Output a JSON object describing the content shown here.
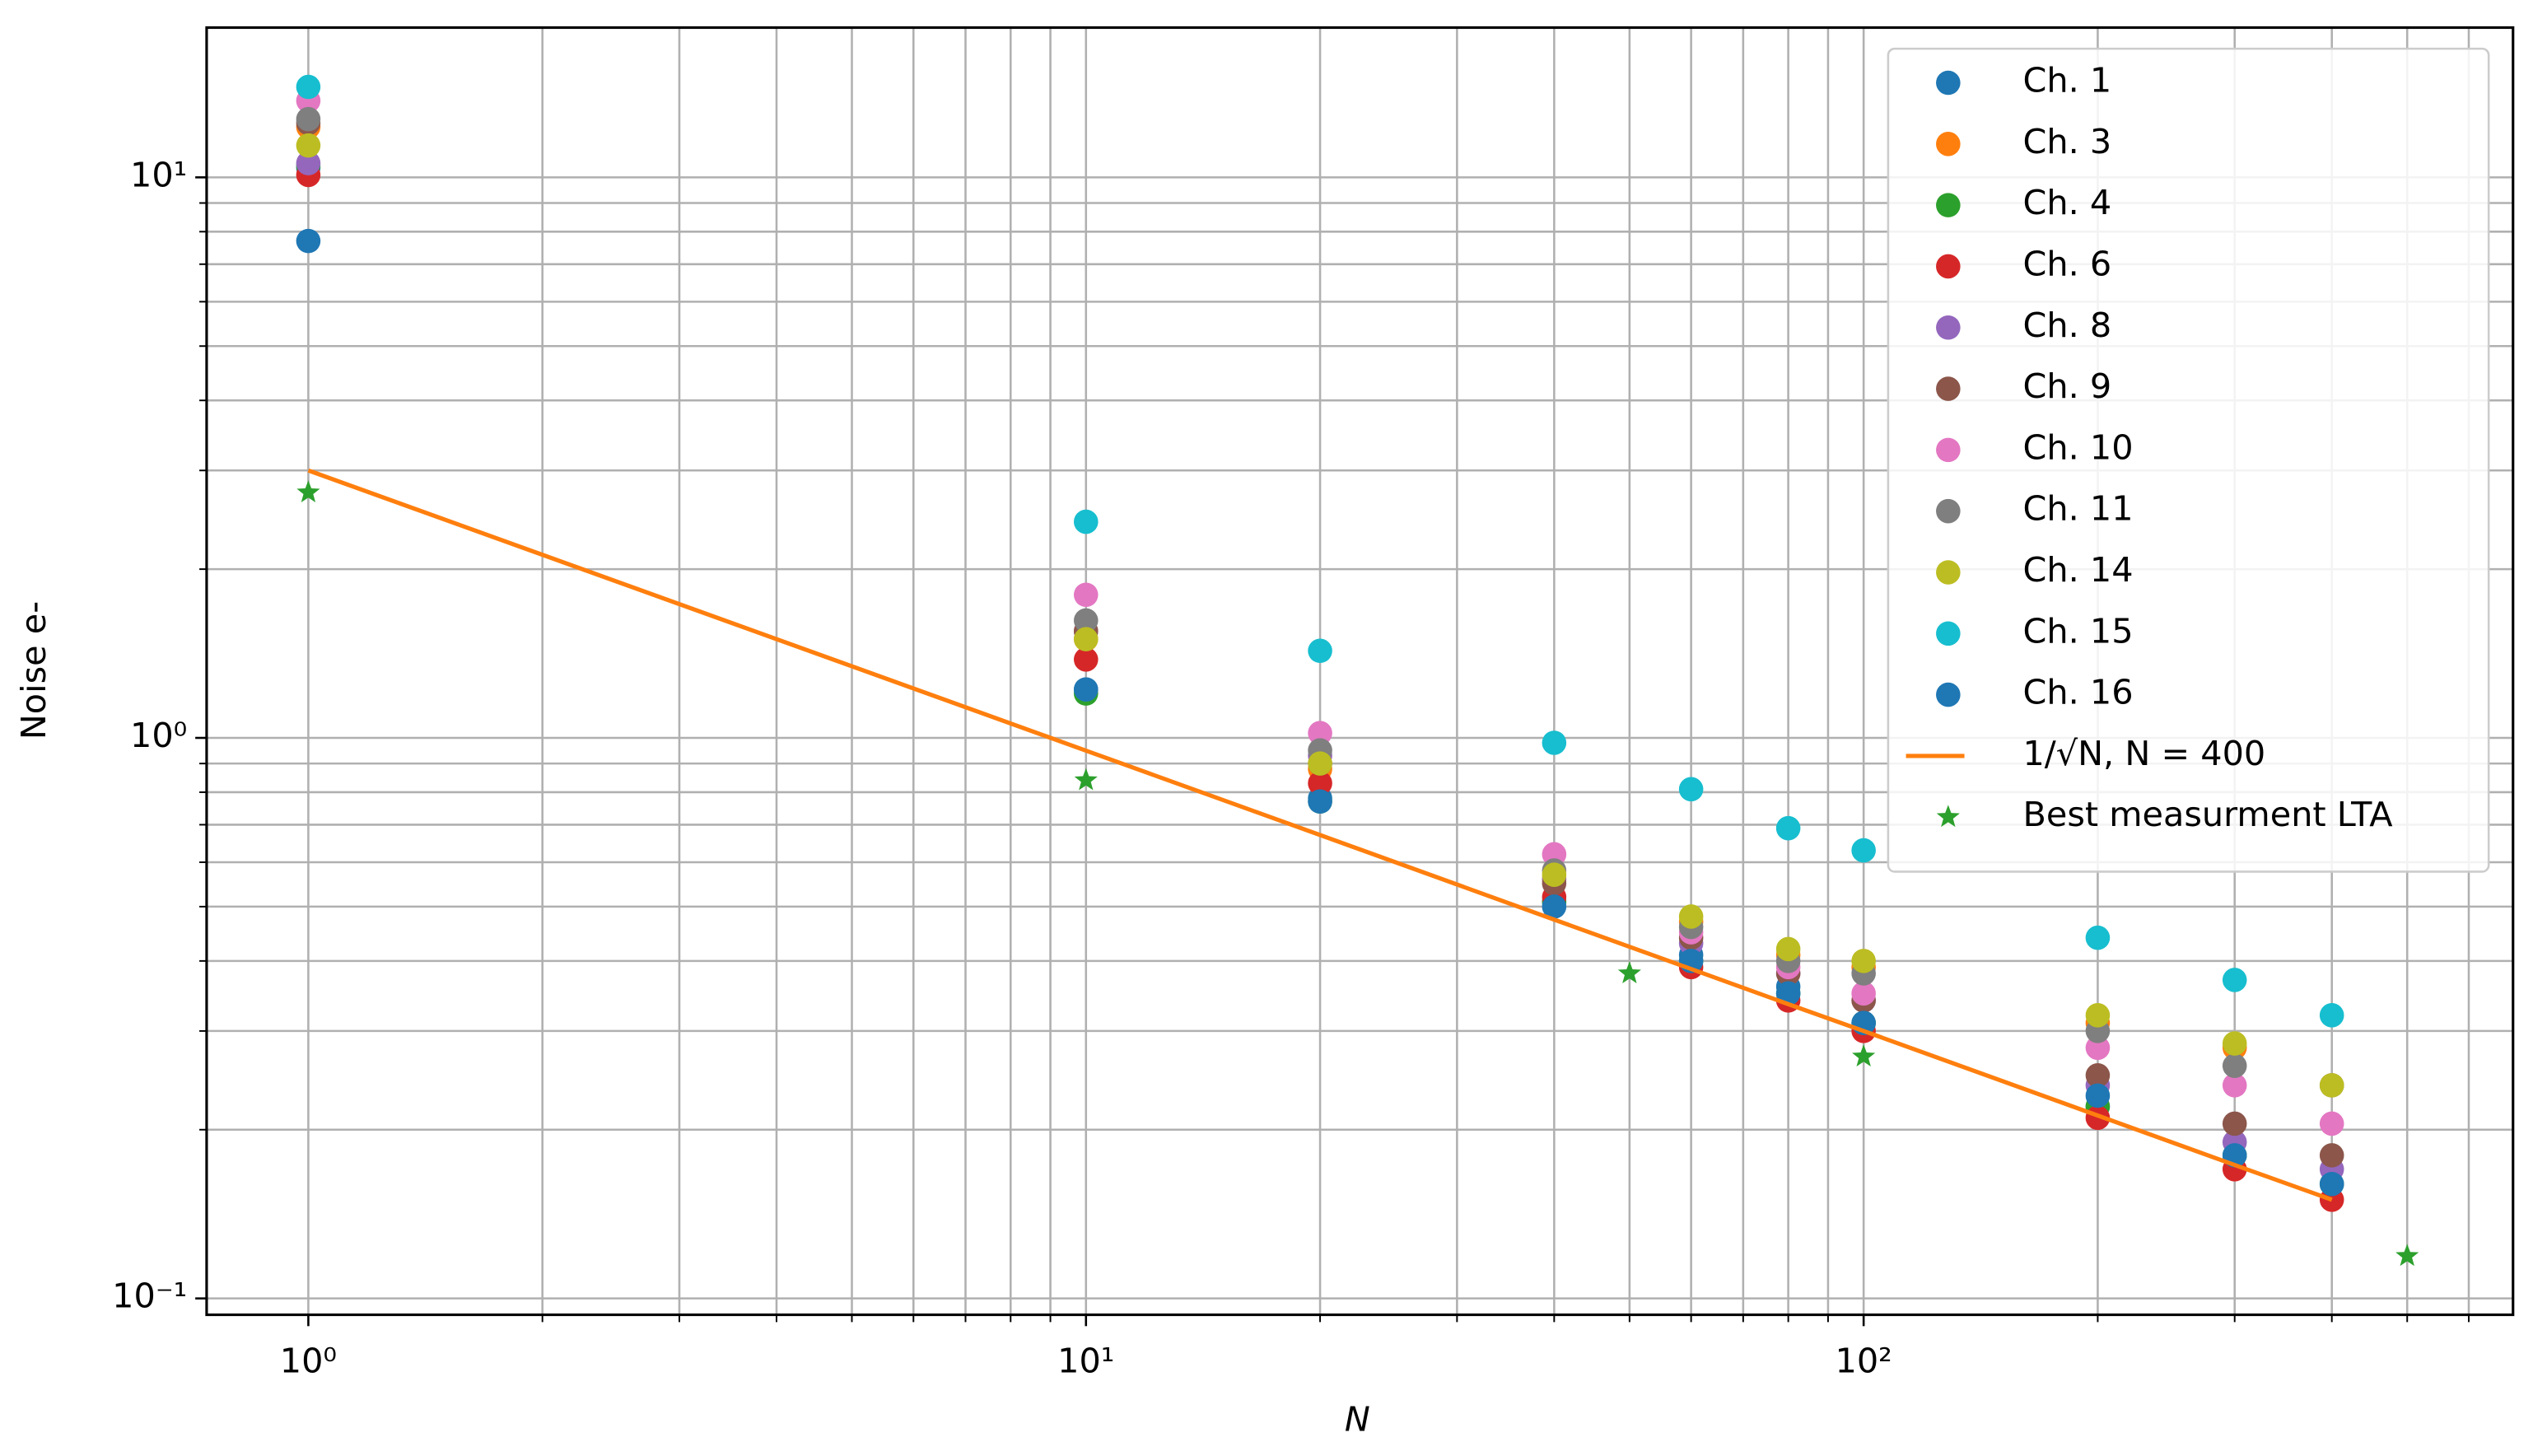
{
  "chart_data": {
    "type": "scatter",
    "xlabel": "N",
    "ylabel": "Noise e-",
    "xscale": "log",
    "yscale": "log",
    "grid": true,
    "legend": "upper right",
    "xlim": [
      0.74,
      684
    ],
    "ylim": [
      0.0935,
      18.5
    ],
    "xticks": [
      {
        "value": 1,
        "label": "10⁰"
      },
      {
        "value": 10,
        "label": "10¹"
      },
      {
        "value": 100,
        "label": "10²"
      }
    ],
    "yticks": [
      {
        "value": 0.1,
        "label": "10⁻¹"
      },
      {
        "value": 1,
        "label": "10⁰"
      },
      {
        "value": 10,
        "label": "10¹"
      }
    ],
    "xticks_minor": [
      2,
      3,
      4,
      5,
      6,
      7,
      8,
      9,
      20,
      30,
      40,
      50,
      60,
      70,
      80,
      90,
      200,
      300,
      400,
      500,
      600
    ],
    "yticks_minor": [
      0.2,
      0.3,
      0.4,
      0.5,
      0.6,
      0.7,
      0.8,
      0.9,
      2,
      3,
      4,
      5,
      6,
      7,
      8,
      9
    ],
    "series": [
      {
        "name": "Ch. 1",
        "color": "#1f77b4",
        "marker": "circle",
        "x": [
          1,
          10,
          20,
          40,
          60,
          80,
          100,
          200,
          300,
          400
        ],
        "values": [
          10.4,
          1.22,
          0.78,
          0.51,
          0.41,
          0.36,
          0.31,
          0.22,
          0.18,
          0.16
        ]
      },
      {
        "name": "Ch. 3",
        "color": "#ff7f0e",
        "marker": "circle",
        "x": [
          1,
          10,
          20,
          40,
          60,
          80,
          100,
          200,
          300,
          400
        ],
        "values": [
          12.3,
          1.5,
          0.88,
          0.56,
          0.47,
          0.41,
          0.39,
          0.31,
          0.28,
          0.24
        ]
      },
      {
        "name": "Ch. 4",
        "color": "#2ca02c",
        "marker": "circle",
        "x": [
          1,
          10,
          20,
          40,
          60,
          80,
          100,
          200,
          300,
          400
        ],
        "values": [
          10.5,
          1.2,
          0.77,
          0.51,
          0.4,
          0.35,
          0.31,
          0.22,
          0.18,
          0.16
        ]
      },
      {
        "name": "Ch. 6",
        "color": "#d62728",
        "marker": "circle",
        "x": [
          1,
          10,
          20,
          40,
          60,
          80,
          100,
          200,
          300,
          400
        ],
        "values": [
          10.1,
          1.38,
          0.83,
          0.52,
          0.39,
          0.34,
          0.3,
          0.21,
          0.17,
          0.15
        ]
      },
      {
        "name": "Ch. 8",
        "color": "#9467bd",
        "marker": "circle",
        "x": [
          1,
          10,
          20,
          40,
          60,
          80,
          100,
          200,
          300,
          400
        ],
        "values": [
          10.6,
          1.55,
          0.93,
          0.56,
          0.43,
          0.38,
          0.34,
          0.24,
          0.19,
          0.17
        ]
      },
      {
        "name": "Ch. 9",
        "color": "#8c564b",
        "marker": "circle",
        "x": [
          1,
          10,
          20,
          40,
          60,
          80,
          100,
          200,
          300,
          400
        ],
        "values": [
          12.5,
          1.55,
          0.9,
          0.55,
          0.44,
          0.38,
          0.34,
          0.25,
          0.205,
          0.18
        ]
      },
      {
        "name": "Ch. 10",
        "color": "#e377c2",
        "marker": "circle",
        "x": [
          1,
          10,
          20,
          40,
          60,
          80,
          100,
          200,
          300,
          400
        ],
        "values": [
          13.7,
          1.8,
          1.02,
          0.62,
          0.45,
          0.39,
          0.35,
          0.28,
          0.24,
          0.205
        ]
      },
      {
        "name": "Ch. 11",
        "color": "#7f7f7f",
        "marker": "circle",
        "x": [
          1,
          10,
          20,
          40,
          60,
          80,
          100,
          200,
          300,
          400
        ],
        "values": [
          12.7,
          1.62,
          0.95,
          0.58,
          0.46,
          0.4,
          0.38,
          0.3,
          0.26,
          0.24
        ]
      },
      {
        "name": "Ch. 14",
        "color": "#bcbd22",
        "marker": "circle",
        "x": [
          1,
          10,
          20,
          40,
          60,
          80,
          100,
          200,
          300,
          400
        ],
        "values": [
          11.4,
          1.5,
          0.9,
          0.57,
          0.48,
          0.42,
          0.4,
          0.32,
          0.285,
          0.24
        ]
      },
      {
        "name": "Ch. 15",
        "color": "#17becf",
        "marker": "circle",
        "x": [
          1,
          10,
          20,
          40,
          60,
          80,
          100,
          200,
          300,
          400
        ],
        "values": [
          14.5,
          2.43,
          1.43,
          0.98,
          0.81,
          0.69,
          0.63,
          0.44,
          0.37,
          0.32
        ]
      },
      {
        "name": "Ch. 16",
        "color": "#1f77b4",
        "marker": "circle",
        "x": [
          1,
          10,
          20,
          40,
          60,
          80,
          100,
          200,
          300,
          400
        ],
        "values": [
          7.7,
          1.22,
          0.77,
          0.5,
          0.4,
          0.35,
          0.31,
          0.23,
          0.18,
          0.16
        ]
      },
      {
        "name": "1/√N, N = 400",
        "color": "#ff7f0e",
        "marker": "line",
        "x": [
          1,
          10,
          20,
          40,
          60,
          80,
          100,
          200,
          300,
          400
        ],
        "values": [
          3,
          0.949,
          0.671,
          0.474,
          0.387,
          0.335,
          0.3,
          0.212,
          0.173,
          0.15
        ]
      },
      {
        "name": "Best measurment LTA",
        "color": "#2ca02c",
        "marker": "star",
        "x": [
          1,
          10,
          50,
          100,
          500
        ],
        "values": [
          2.74,
          0.84,
          0.38,
          0.27,
          0.119
        ]
      }
    ]
  }
}
